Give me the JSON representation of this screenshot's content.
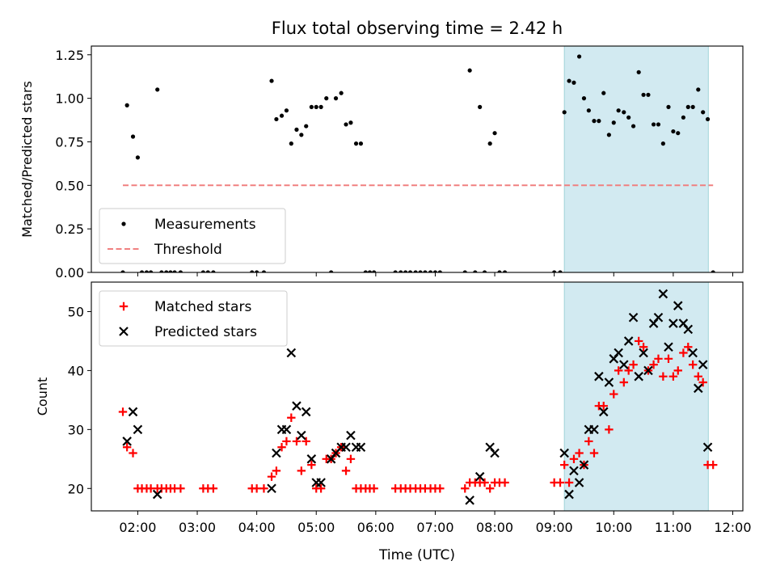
{
  "figure": {
    "title": "Flux total observing time = 2.42 h",
    "xlabel": "Time (UTC)",
    "xticks": [
      {
        "t": 2.0,
        "label": "02:00"
      },
      {
        "t": 3.0,
        "label": "03:00"
      },
      {
        "t": 4.0,
        "label": "04:00"
      },
      {
        "t": 5.0,
        "label": "05:00"
      },
      {
        "t": 6.0,
        "label": "06:00"
      },
      {
        "t": 7.0,
        "label": "07:00"
      },
      {
        "t": 8.0,
        "label": "08:00"
      },
      {
        "t": 9.0,
        "label": "09:00"
      },
      {
        "t": 10.0,
        "label": "10:00"
      },
      {
        "t": 11.0,
        "label": "11:00"
      },
      {
        "t": 12.0,
        "label": "12:00"
      }
    ],
    "xlim": [
      1.22,
      12.17
    ],
    "shaded_span": [
      9.17,
      11.59
    ],
    "shade_color": "#add8e6"
  },
  "chart_data": [
    {
      "type": "scatter",
      "ylabel": "Matched/Predicted stars",
      "ylim": [
        0,
        1.3
      ],
      "yticks": [
        "0.00",
        "0.25",
        "0.50",
        "0.75",
        "1.00",
        "1.25"
      ],
      "legend": "lower-left",
      "series": [
        {
          "name": "Measurements",
          "color": "#000000",
          "marker": "dot",
          "points": [
            [
              1.75,
              0
            ],
            [
              1.82,
              0.96
            ],
            [
              1.92,
              0.78
            ],
            [
              2.0,
              0.66
            ],
            [
              2.07,
              0
            ],
            [
              2.15,
              0
            ],
            [
              2.22,
              0
            ],
            [
              2.33,
              1.05
            ],
            [
              2.4,
              0
            ],
            [
              2.48,
              0
            ],
            [
              2.55,
              0
            ],
            [
              2.62,
              0
            ],
            [
              2.72,
              0
            ],
            [
              3.1,
              0
            ],
            [
              3.18,
              0
            ],
            [
              3.27,
              0
            ],
            [
              3.92,
              0
            ],
            [
              4.0,
              0
            ],
            [
              4.12,
              0
            ],
            [
              4.25,
              1.1
            ],
            [
              4.33,
              0.88
            ],
            [
              4.42,
              0.9
            ],
            [
              4.5,
              0.93
            ],
            [
              4.58,
              0.74
            ],
            [
              4.67,
              0.82
            ],
            [
              4.75,
              0.79
            ],
            [
              4.83,
              0.84
            ],
            [
              4.92,
              0.95
            ],
            [
              5.0,
              0.95
            ],
            [
              5.08,
              0.95
            ],
            [
              5.17,
              1.0
            ],
            [
              5.25,
              0
            ],
            [
              5.33,
              1.0
            ],
            [
              5.42,
              1.03
            ],
            [
              5.5,
              0.85
            ],
            [
              5.58,
              0.86
            ],
            [
              5.67,
              0.74
            ],
            [
              5.75,
              0.74
            ],
            [
              5.83,
              0
            ],
            [
              5.9,
              0
            ],
            [
              5.97,
              0
            ],
            [
              6.33,
              0
            ],
            [
              6.42,
              0
            ],
            [
              6.5,
              0
            ],
            [
              6.58,
              0
            ],
            [
              6.67,
              0
            ],
            [
              6.75,
              0
            ],
            [
              6.83,
              0
            ],
            [
              6.92,
              0
            ],
            [
              7.0,
              0
            ],
            [
              7.08,
              0
            ],
            [
              7.5,
              0
            ],
            [
              7.58,
              1.16
            ],
            [
              7.67,
              0
            ],
            [
              7.75,
              0.95
            ],
            [
              7.83,
              0
            ],
            [
              7.92,
              0.74
            ],
            [
              8.0,
              0.8
            ],
            [
              8.08,
              0
            ],
            [
              8.17,
              0
            ],
            [
              9.0,
              0
            ],
            [
              9.1,
              0
            ],
            [
              9.17,
              0.92
            ],
            [
              9.25,
              1.1
            ],
            [
              9.33,
              1.09
            ],
            [
              9.42,
              1.24
            ],
            [
              9.5,
              1.0
            ],
            [
              9.58,
              0.93
            ],
            [
              9.67,
              0.87
            ],
            [
              9.75,
              0.87
            ],
            [
              9.83,
              1.03
            ],
            [
              9.92,
              0.79
            ],
            [
              10.0,
              0.86
            ],
            [
              10.08,
              0.93
            ],
            [
              10.17,
              0.92
            ],
            [
              10.25,
              0.89
            ],
            [
              10.33,
              0.84
            ],
            [
              10.42,
              1.15
            ],
            [
              10.5,
              1.02
            ],
            [
              10.58,
              1.02
            ],
            [
              10.67,
              0.85
            ],
            [
              10.75,
              0.85
            ],
            [
              10.83,
              0.74
            ],
            [
              10.92,
              0.95
            ],
            [
              11.0,
              0.81
            ],
            [
              11.08,
              0.8
            ],
            [
              11.17,
              0.89
            ],
            [
              11.25,
              0.95
            ],
            [
              11.33,
              0.95
            ],
            [
              11.42,
              1.05
            ],
            [
              11.5,
              0.92
            ],
            [
              11.58,
              0.88
            ],
            [
              11.67,
              0
            ]
          ]
        },
        {
          "name": "Threshold",
          "color": "#f08080",
          "line": "dashed",
          "points": [
            [
              1.75,
              0.5
            ],
            [
              11.67,
              0.5
            ]
          ]
        }
      ]
    },
    {
      "type": "scatter",
      "ylabel": "Count",
      "ylim": [
        16.2,
        55
      ],
      "yticks": [
        20,
        30,
        40,
        50
      ],
      "legend": "top-left",
      "series": [
        {
          "name": "Matched stars",
          "color": "#ff0000",
          "marker": "plus",
          "points": [
            [
              1.75,
              33
            ],
            [
              1.82,
              27
            ],
            [
              1.92,
              26
            ],
            [
              2.0,
              20
            ],
            [
              2.07,
              20
            ],
            [
              2.15,
              20
            ],
            [
              2.22,
              20
            ],
            [
              2.33,
              20
            ],
            [
              2.4,
              20
            ],
            [
              2.48,
              20
            ],
            [
              2.55,
              20
            ],
            [
              2.62,
              20
            ],
            [
              2.72,
              20
            ],
            [
              3.1,
              20
            ],
            [
              3.18,
              20
            ],
            [
              3.27,
              20
            ],
            [
              3.92,
              20
            ],
            [
              4.0,
              20
            ],
            [
              4.12,
              20
            ],
            [
              4.25,
              22
            ],
            [
              4.33,
              23
            ],
            [
              4.42,
              27
            ],
            [
              4.5,
              28
            ],
            [
              4.58,
              32
            ],
            [
              4.67,
              28
            ],
            [
              4.75,
              23
            ],
            [
              4.83,
              28
            ],
            [
              4.92,
              24
            ],
            [
              5.0,
              20
            ],
            [
              5.08,
              20
            ],
            [
              5.17,
              25
            ],
            [
              5.25,
              25
            ],
            [
              5.33,
              26
            ],
            [
              5.42,
              27
            ],
            [
              5.5,
              23
            ],
            [
              5.58,
              25
            ],
            [
              5.67,
              20
            ],
            [
              5.75,
              20
            ],
            [
              5.83,
              20
            ],
            [
              5.9,
              20
            ],
            [
              5.97,
              20
            ],
            [
              6.33,
              20
            ],
            [
              6.42,
              20
            ],
            [
              6.5,
              20
            ],
            [
              6.58,
              20
            ],
            [
              6.67,
              20
            ],
            [
              6.75,
              20
            ],
            [
              6.83,
              20
            ],
            [
              6.92,
              20
            ],
            [
              7.0,
              20
            ],
            [
              7.08,
              20
            ],
            [
              7.5,
              20
            ],
            [
              7.58,
              21
            ],
            [
              7.67,
              21
            ],
            [
              7.75,
              21
            ],
            [
              7.83,
              21
            ],
            [
              7.92,
              20
            ],
            [
              8.0,
              21
            ],
            [
              8.08,
              21
            ],
            [
              8.17,
              21
            ],
            [
              9.0,
              21
            ],
            [
              9.1,
              21
            ],
            [
              9.17,
              24
            ],
            [
              9.25,
              21
            ],
            [
              9.33,
              25
            ],
            [
              9.42,
              26
            ],
            [
              9.5,
              24
            ],
            [
              9.58,
              28
            ],
            [
              9.67,
              26
            ],
            [
              9.75,
              34
            ],
            [
              9.83,
              34
            ],
            [
              9.92,
              30
            ],
            [
              10.0,
              36
            ],
            [
              10.08,
              40
            ],
            [
              10.17,
              38
            ],
            [
              10.25,
              40
            ],
            [
              10.33,
              41
            ],
            [
              10.42,
              45
            ],
            [
              10.5,
              44
            ],
            [
              10.58,
              40
            ],
            [
              10.67,
              41
            ],
            [
              10.75,
              42
            ],
            [
              10.83,
              39
            ],
            [
              10.92,
              42
            ],
            [
              11.0,
              39
            ],
            [
              11.08,
              40
            ],
            [
              11.17,
              43
            ],
            [
              11.25,
              44
            ],
            [
              11.33,
              41
            ],
            [
              11.42,
              39
            ],
            [
              11.5,
              38
            ],
            [
              11.58,
              24
            ],
            [
              11.67,
              24
            ]
          ]
        },
        {
          "name": "Predicted stars",
          "color": "#000000",
          "marker": "x",
          "points": [
            [
              1.82,
              28
            ],
            [
              1.92,
              33
            ],
            [
              2.0,
              30
            ],
            [
              2.33,
              19
            ],
            [
              4.25,
              20
            ],
            [
              4.33,
              26
            ],
            [
              4.42,
              30
            ],
            [
              4.5,
              30
            ],
            [
              4.58,
              43
            ],
            [
              4.67,
              34
            ],
            [
              4.75,
              29
            ],
            [
              4.83,
              33
            ],
            [
              4.92,
              25
            ],
            [
              5.0,
              21
            ],
            [
              5.08,
              21
            ],
            [
              5.25,
              25
            ],
            [
              5.33,
              26
            ],
            [
              5.42,
              27
            ],
            [
              5.5,
              27
            ],
            [
              5.58,
              29
            ],
            [
              5.67,
              27
            ],
            [
              5.75,
              27
            ],
            [
              7.58,
              18
            ],
            [
              7.75,
              22
            ],
            [
              7.92,
              27
            ],
            [
              8.0,
              26
            ],
            [
              9.17,
              26
            ],
            [
              9.25,
              19
            ],
            [
              9.33,
              23
            ],
            [
              9.42,
              21
            ],
            [
              9.5,
              24
            ],
            [
              9.58,
              30
            ],
            [
              9.67,
              30
            ],
            [
              9.75,
              39
            ],
            [
              9.83,
              33
            ],
            [
              9.92,
              38
            ],
            [
              10.0,
              42
            ],
            [
              10.08,
              43
            ],
            [
              10.17,
              41
            ],
            [
              10.25,
              45
            ],
            [
              10.33,
              49
            ],
            [
              10.42,
              39
            ],
            [
              10.5,
              43
            ],
            [
              10.58,
              40
            ],
            [
              10.67,
              48
            ],
            [
              10.75,
              49
            ],
            [
              10.83,
              53
            ],
            [
              10.92,
              44
            ],
            [
              11.0,
              48
            ],
            [
              11.08,
              51
            ],
            [
              11.17,
              48
            ],
            [
              11.25,
              47
            ],
            [
              11.33,
              43
            ],
            [
              11.42,
              37
            ],
            [
              11.5,
              41
            ],
            [
              11.58,
              27
            ]
          ]
        }
      ]
    }
  ]
}
